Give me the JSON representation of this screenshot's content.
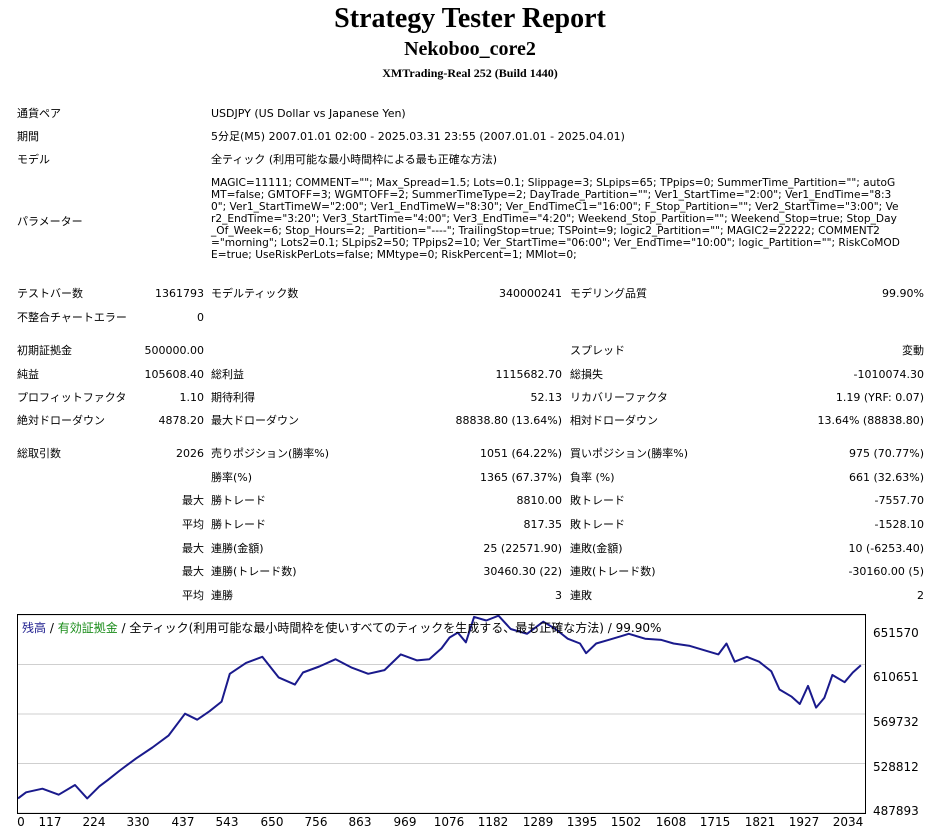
{
  "header": {
    "title": "Strategy Tester Report",
    "subtitle": "Nekoboo_core2",
    "server": "XMTrading-Real 252 (Build 1440)"
  },
  "info": {
    "pair_label": "通貨ペア",
    "pair_value": "USDJPY (US Dollar vs Japanese Yen)",
    "period_label": "期間",
    "period_value": "5分足(M5) 2007.01.01 02:00 - 2025.03.31 23:55 (2007.01.01 - 2025.04.01)",
    "model_label": "モデル",
    "model_value": "全ティック (利用可能な最小時間枠による最も正確な方法)",
    "params_label": "パラメーター",
    "params_value": "MAGIC=11111; COMMENT=\"\"; Max_Spread=1.5; Lots=0.1; Slippage=3; SLpips=65; TPpips=0; SummerTime_Partition=\"\"; autoGMT=false; GMTOFF=3; WGMTOFF=2; SummerTimeType=2; DayTrade_Partition=\"\"; Ver1_StartTime=\"2:00\"; Ver1_EndTime=\"8:30\"; Ver1_StartTimeW=\"2:00\"; Ver1_EndTimeW=\"8:30\"; Ver_EndTimeC1=\"16:00\"; F_Stop_Partition=\"\"; Ver2_StartTime=\"3:00\"; Ver2_EndTime=\"3:20\"; Ver3_StartTime=\"4:00\"; Ver3_EndTime=\"4:20\"; Weekend_Stop_Partition=\"\"; Weekend_Stop=true; Stop_Day_Of_Week=6; Stop_Hours=2; _Partition=\"----\"; TrailingStop=true; TSPoint=9; logic2_Partition=\"\"; MAGIC2=22222; COMMENT2=\"morning\"; Lots2=0.1; SLpips2=50; TPpips2=10; Ver_StartTime=\"06:00\"; Ver_EndTime=\"10:00\"; logic_Partition=\"\"; RiskCoMODE=true; UseRiskPerLots=false; MMtype=0; RiskPercent=1; MMlot=0;"
  },
  "stats": {
    "bars_label": "テストバー数",
    "bars": "1361793",
    "ticks_label": "モデルティック数",
    "ticks": "340000241",
    "quality_label": "モデリング品質",
    "quality": "99.90%",
    "mismatch_label": "不整合チャートエラー",
    "mismatch": "0",
    "deposit_label": "初期証拠金",
    "deposit": "500000.00",
    "spread_label": "スプレッド",
    "spread": "変動",
    "net_label": "純益",
    "net": "105608.40",
    "gross_profit_label": "総利益",
    "gross_profit": "1115682.70",
    "gross_loss_label": "総損失",
    "gross_loss": "-1010074.30",
    "pf_label": "プロフィットファクタ",
    "pf": "1.10",
    "expected_label": "期待利得",
    "expected": "52.13",
    "recovery_label": "リカバリーファクタ",
    "recovery": "1.19 (YRF: 0.07)",
    "abs_dd_label": "絶対ドローダウン",
    "abs_dd": "4878.20",
    "max_dd_label": "最大ドローダウン",
    "max_dd": "88838.80 (13.64%)",
    "rel_dd_label": "相対ドローダウン",
    "rel_dd": "13.64% (88838.80)",
    "trades_label": "総取引数",
    "trades": "2026",
    "short_label": "売りポジション(勝率%)",
    "short": "1051 (64.22%)",
    "long_label": "買いポジション(勝率%)",
    "long": "975 (70.77%)",
    "winrate_label": "勝率(%)",
    "winrate": "1365 (67.37%)",
    "lossrate_label": "負率 (%)",
    "lossrate": "661 (32.63%)",
    "max_label": "最大",
    "avg_label": "平均",
    "win_trade_label": "勝トレード",
    "loss_trade_label": "敗トレード",
    "max_win": "8810.00",
    "max_loss": "-7557.70",
    "avg_win": "817.35",
    "avg_loss": "-1528.10",
    "cons_win_amt_label": "連勝(金額)",
    "cons_win_amt": "25 (22571.90)",
    "cons_loss_amt_label": "連敗(金額)",
    "cons_loss_amt": "10 (-6253.40)",
    "cons_win_cnt_label": "連勝(トレード数)",
    "cons_win_cnt": "30460.30 (22)",
    "cons_loss_cnt_label": "連敗(トレード数)",
    "cons_loss_cnt": "-30160.00 (5)",
    "avg_cons_win_label": "連勝",
    "avg_cons_win": "3",
    "avg_cons_loss_label": "連敗",
    "avg_cons_loss": "2"
  },
  "chart_legend": {
    "balance": "残高",
    "sep1": " / ",
    "equity": "有効証拠金",
    "rest": " / 全ティック(利用可能な最小時間枠を使いすべてのティックを生成する、最も正確な方法) / 99.90%"
  },
  "colors": {
    "balance": "#1a1a8c",
    "equity": "#1a8c1a",
    "grid": "#cfcfcf"
  },
  "chart_data": {
    "type": "line",
    "yticks": [
      "651570",
      "610651",
      "569732",
      "528812",
      "487893"
    ],
    "xticks": [
      "0",
      "117",
      "224",
      "330",
      "437",
      "543",
      "650",
      "756",
      "863",
      "969",
      "1076",
      "1182",
      "1289",
      "1395",
      "1502",
      "1608",
      "1715",
      "1821",
      "1927",
      "2034"
    ],
    "ylim": [
      487893,
      651570
    ],
    "xlim": [
      0,
      2080
    ],
    "series": [
      {
        "name": "残高",
        "x": [
          0,
          20,
          60,
          100,
          140,
          170,
          200,
          220,
          250,
          290,
          330,
          370,
          410,
          440,
          470,
          500,
          520,
          560,
          600,
          640,
          680,
          700,
          740,
          780,
          820,
          860,
          900,
          940,
          980,
          1010,
          1040,
          1060,
          1080,
          1100,
          1120,
          1150,
          1180,
          1210,
          1250,
          1290,
          1320,
          1350,
          1380,
          1395,
          1420,
          1450,
          1480,
          1500,
          1540,
          1580,
          1610,
          1650,
          1690,
          1720,
          1740,
          1760,
          1790,
          1820,
          1850,
          1870,
          1900,
          1920,
          1940,
          1960,
          1980,
          2000,
          2030,
          2050,
          2070
        ],
        "y": [
          500000,
          505000,
          508000,
          503000,
          511000,
          500000,
          510000,
          515000,
          523000,
          533000,
          542000,
          552000,
          570000,
          565000,
          572000,
          580000,
          603000,
          612000,
          617000,
          600000,
          594000,
          604000,
          609000,
          615000,
          608000,
          603000,
          606000,
          619000,
          614000,
          615000,
          624000,
          633000,
          637000,
          629000,
          650000,
          647000,
          651000,
          640000,
          636000,
          646000,
          640000,
          632000,
          628000,
          620000,
          628000,
          631000,
          634000,
          636000,
          632000,
          631000,
          628000,
          626000,
          622000,
          619000,
          628000,
          613000,
          617000,
          613000,
          605000,
          590000,
          584000,
          578000,
          593000,
          575000,
          583000,
          602000,
          596000,
          604000,
          610000
        ]
      }
    ]
  }
}
